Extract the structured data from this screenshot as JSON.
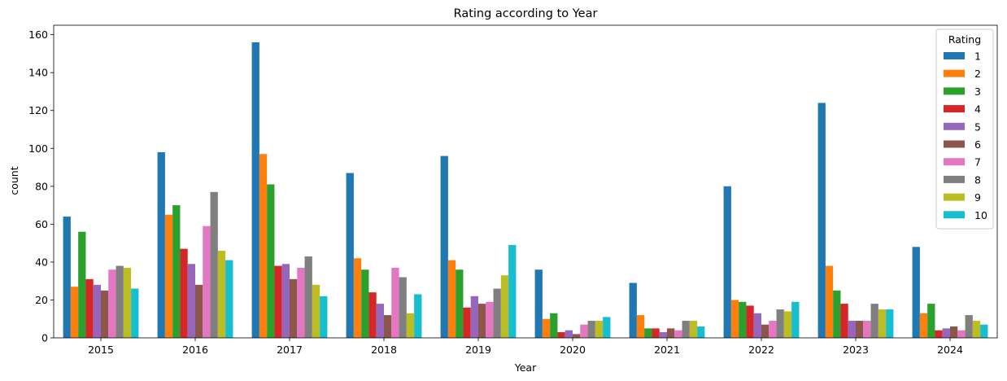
{
  "chart_data": {
    "type": "bar",
    "title": "Rating according to Year",
    "xlabel": "Year",
    "ylabel": "count",
    "ylim": [
      0,
      165
    ],
    "yticks": [
      0,
      20,
      40,
      60,
      80,
      100,
      120,
      140,
      160
    ],
    "grid": false,
    "legend": {
      "title": "Rating",
      "placement": "top-right"
    },
    "categories": [
      "2015",
      "2016",
      "2017",
      "2018",
      "2019",
      "2020",
      "2021",
      "2022",
      "2023",
      "2024"
    ],
    "series": [
      {
        "name": "1",
        "color": "#1f77b4",
        "values": [
          64,
          98,
          156,
          87,
          96,
          36,
          29,
          80,
          124,
          48
        ]
      },
      {
        "name": "2",
        "color": "#ff7f0e",
        "values": [
          27,
          65,
          97,
          42,
          41,
          10,
          12,
          20,
          38,
          13
        ]
      },
      {
        "name": "3",
        "color": "#2ca02c",
        "values": [
          56,
          70,
          81,
          36,
          36,
          13,
          5,
          19,
          25,
          18
        ]
      },
      {
        "name": "4",
        "color": "#d62728",
        "values": [
          31,
          47,
          38,
          24,
          16,
          3,
          5,
          17,
          18,
          4
        ]
      },
      {
        "name": "5",
        "color": "#9467bd",
        "values": [
          28,
          39,
          39,
          18,
          22,
          4,
          3,
          13,
          9,
          5
        ]
      },
      {
        "name": "6",
        "color": "#8c564b",
        "values": [
          25,
          28,
          31,
          12,
          18,
          2,
          5,
          7,
          9,
          6
        ]
      },
      {
        "name": "7",
        "color": "#e377c2",
        "values": [
          36,
          59,
          37,
          37,
          19,
          7,
          4,
          9,
          9,
          4
        ]
      },
      {
        "name": "8",
        "color": "#7f7f7f",
        "values": [
          38,
          77,
          43,
          32,
          26,
          9,
          9,
          15,
          18,
          12
        ]
      },
      {
        "name": "9",
        "color": "#bcbd22",
        "values": [
          37,
          46,
          28,
          13,
          33,
          9,
          9,
          14,
          15,
          9
        ]
      },
      {
        "name": "10",
        "color": "#17becf",
        "values": [
          26,
          41,
          22,
          23,
          49,
          11,
          6,
          19,
          15,
          7
        ]
      }
    ]
  }
}
